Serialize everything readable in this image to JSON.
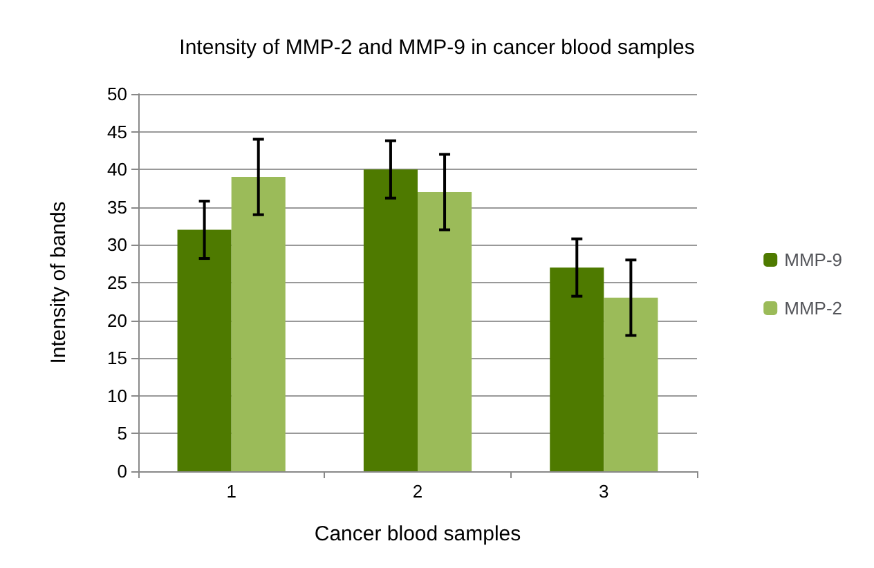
{
  "chart_data": {
    "type": "bar",
    "title": "Intensity of MMP-2 and MMP-9 in cancer blood samples",
    "xlabel": "Cancer blood samples",
    "ylabel": "Intensity of bands",
    "categories": [
      "1",
      "2",
      "3"
    ],
    "series": [
      {
        "name": "MMP-9",
        "color": "#4e7a00",
        "values": [
          32,
          40,
          27
        ],
        "errors": [
          3.8,
          3.8,
          3.8
        ]
      },
      {
        "name": "MMP-2",
        "color": "#9bbb59",
        "values": [
          39,
          37,
          23
        ],
        "errors": [
          5,
          5,
          5
        ]
      }
    ],
    "ylim": [
      0,
      50
    ],
    "yticks": [
      0,
      5,
      10,
      15,
      20,
      25,
      30,
      35,
      40,
      45,
      50
    ],
    "grid": "y",
    "legend": "right"
  }
}
